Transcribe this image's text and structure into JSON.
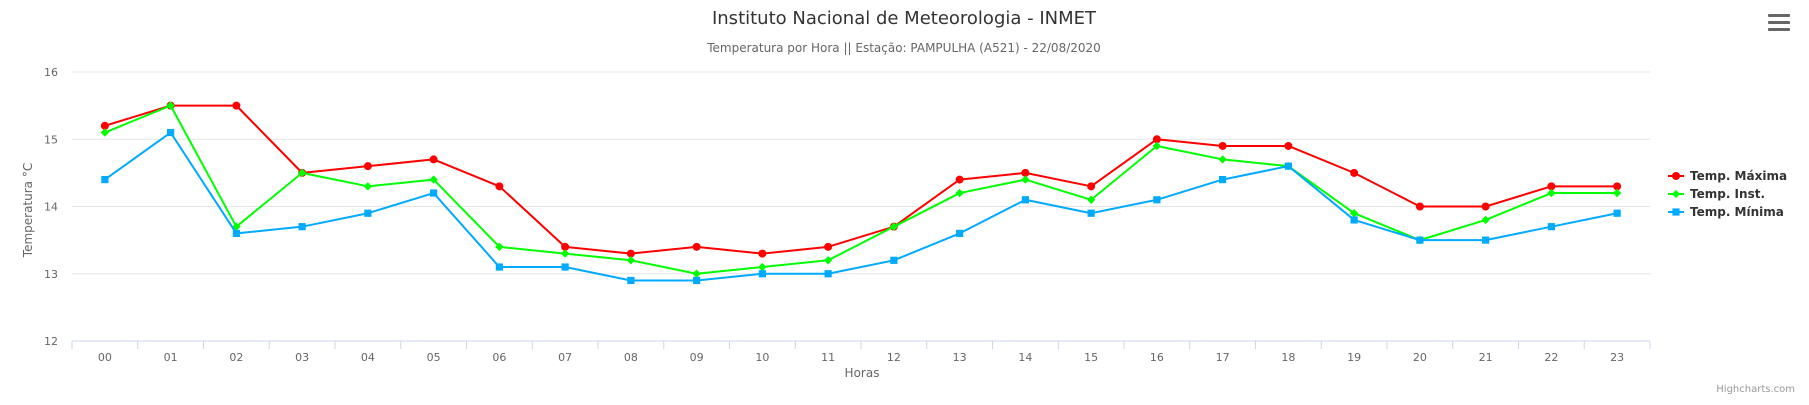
{
  "chart_data": {
    "type": "line",
    "title": "Instituto Nacional de Meteorologia - INMET",
    "subtitle": "Temperatura por Hora || Estação: PAMPULHA (A521) - 22/08/2020",
    "xlabel": "Horas",
    "ylabel": "Temperatura °C",
    "ylim": [
      12,
      16
    ],
    "yticks": [
      "12",
      "13",
      "14",
      "15",
      "16"
    ],
    "grid": true,
    "legend_position": "right",
    "categories": [
      "00",
      "01",
      "02",
      "03",
      "04",
      "05",
      "06",
      "07",
      "08",
      "09",
      "10",
      "11",
      "12",
      "13",
      "14",
      "15",
      "16",
      "17",
      "18",
      "19",
      "20",
      "21",
      "22",
      "23"
    ],
    "series": [
      {
        "name": "Temp. Máxima",
        "color": "#ff0000",
        "marker": "circle",
        "values": [
          15.2,
          15.5,
          15.5,
          14.5,
          14.6,
          14.7,
          14.3,
          13.4,
          13.3,
          13.4,
          13.3,
          13.4,
          13.7,
          14.4,
          14.5,
          14.3,
          15.0,
          14.9,
          14.9,
          14.5,
          14.0,
          14.0,
          14.3,
          14.3
        ]
      },
      {
        "name": "Temp. Inst.",
        "color": "#00ff00",
        "marker": "diamond",
        "values": [
          15.1,
          15.5,
          13.7,
          14.5,
          14.3,
          14.4,
          13.4,
          13.3,
          13.2,
          13.0,
          13.1,
          13.2,
          13.7,
          14.2,
          14.4,
          14.1,
          14.9,
          14.7,
          14.6,
          13.9,
          13.5,
          13.8,
          14.2,
          14.2
        ]
      },
      {
        "name": "Temp. Mínima",
        "color": "#00aaff",
        "marker": "square",
        "values": [
          14.4,
          15.1,
          13.6,
          13.7,
          13.9,
          14.2,
          13.1,
          13.1,
          12.9,
          12.9,
          13.0,
          13.0,
          13.2,
          13.6,
          14.1,
          13.9,
          14.1,
          14.4,
          14.6,
          13.8,
          13.5,
          13.5,
          13.7,
          13.9
        ]
      }
    ]
  },
  "ui": {
    "menu_icon": "hamburger-menu-icon",
    "credits": "Highcharts.com"
  }
}
